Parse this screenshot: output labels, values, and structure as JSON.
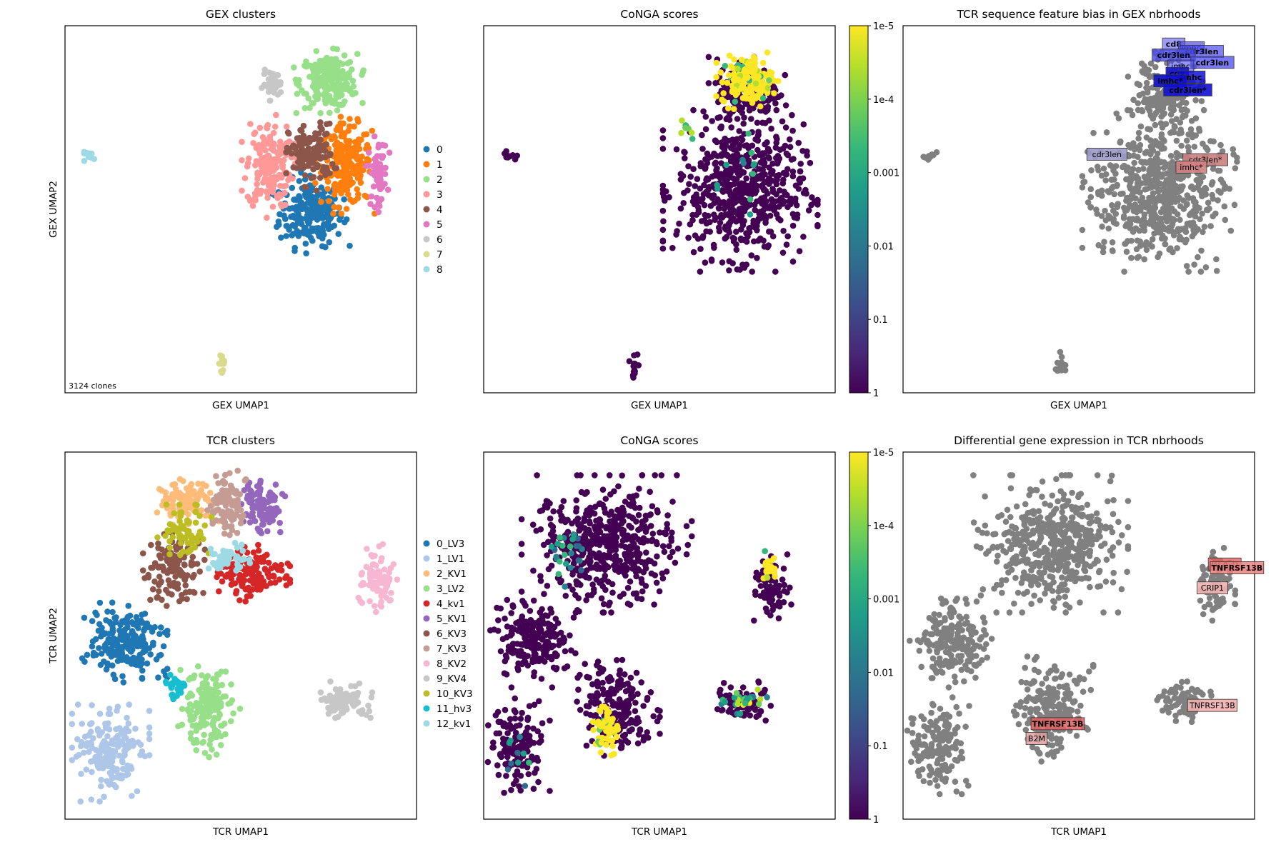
{
  "figure": {
    "background": "#ffffff"
  },
  "chart_data": [
    {
      "id": "gex_clusters",
      "type": "scatter",
      "title": "GEX clusters",
      "xlabel": "GEX UMAP1",
      "ylabel": "GEX UMAP2",
      "xlim": [
        0,
        100
      ],
      "ylim": [
        0,
        100
      ],
      "annotation": "3124 clones",
      "legend": {
        "position": "right",
        "entries": [
          {
            "label": "0",
            "color": "#1f77b4"
          },
          {
            "label": "1",
            "color": "#ff7f0e"
          },
          {
            "label": "2",
            "color": "#98df8a"
          },
          {
            "label": "3",
            "color": "#ff9896"
          },
          {
            "label": "4",
            "color": "#8c564b"
          },
          {
            "label": "5",
            "color": "#e377c2"
          },
          {
            "label": "6",
            "color": "#c7c7c7"
          },
          {
            "label": "7",
            "color": "#dbdb8d"
          },
          {
            "label": "8",
            "color": "#9edae5"
          }
        ]
      },
      "clusters": [
        {
          "label": "0",
          "color": "#1f77b4",
          "cx": 70,
          "cy": 49,
          "rx": 10,
          "ry": 10,
          "n": 220
        },
        {
          "label": "1",
          "color": "#ff7f0e",
          "cx": 80,
          "cy": 62,
          "rx": 8,
          "ry": 12,
          "n": 200
        },
        {
          "label": "2",
          "color": "#98df8a",
          "cx": 75,
          "cy": 85,
          "rx": 9,
          "ry": 8,
          "n": 220
        },
        {
          "label": "3",
          "color": "#ff9896",
          "cx": 58,
          "cy": 62,
          "rx": 7,
          "ry": 13,
          "n": 170
        },
        {
          "label": "4",
          "color": "#8c564b",
          "cx": 70,
          "cy": 65,
          "rx": 7,
          "ry": 9,
          "n": 130
        },
        {
          "label": "5",
          "color": "#e377c2",
          "cx": 89,
          "cy": 60,
          "rx": 3,
          "ry": 10,
          "n": 60
        },
        {
          "label": "6",
          "color": "#c7c7c7",
          "cx": 59,
          "cy": 84,
          "rx": 3,
          "ry": 4,
          "n": 40
        },
        {
          "label": "7",
          "color": "#dbdb8d",
          "cx": 45,
          "cy": 8,
          "rx": 1.5,
          "ry": 3.5,
          "n": 14
        },
        {
          "label": "8",
          "color": "#9edae5",
          "cx": 7,
          "cy": 64.5,
          "rx": 2.5,
          "ry": 1.2,
          "n": 12
        }
      ]
    },
    {
      "id": "conga_gex",
      "type": "scatter",
      "title": "CoNGA scores",
      "xlabel": "GEX UMAP1",
      "ylabel": "",
      "xlim": [
        0,
        100
      ],
      "ylim": [
        0,
        100
      ],
      "colorbar": {
        "ticks": [
          "1e-5",
          "1e-4",
          "0.001",
          "0.01",
          "0.1",
          "1"
        ],
        "tick_log_values": [
          -5,
          -4,
          -3,
          -2,
          -1,
          0
        ],
        "colors": [
          "#fde725",
          "#b5de2b",
          "#6ece58",
          "#35b779",
          "#1f9e89",
          "#26828e",
          "#31688e",
          "#3e4989",
          "#482878",
          "#440154"
        ]
      },
      "base_color": "#440154",
      "clusters": [
        {
          "cx": 73,
          "cy": 55,
          "rx": 20,
          "ry": 20,
          "n": 600
        },
        {
          "cx": 75,
          "cy": 82,
          "rx": 10,
          "ry": 10,
          "n": 200
        },
        {
          "cx": 7,
          "cy": 64.5,
          "rx": 2.5,
          "ry": 1.2,
          "n": 12
        },
        {
          "cx": 43,
          "cy": 8,
          "rx": 1.5,
          "ry": 3.5,
          "n": 14
        }
      ],
      "hot_regions": [
        {
          "cx": 75,
          "cy": 85,
          "rx": 8,
          "ry": 7,
          "n": 170,
          "level": "high"
        },
        {
          "cx": 57,
          "cy": 72,
          "rx": 3,
          "ry": 4,
          "n": 8,
          "level": "mid"
        },
        {
          "cx": 70,
          "cy": 60,
          "rx": 12,
          "ry": 12,
          "n": 12,
          "level": "low"
        }
      ]
    },
    {
      "id": "tcr_bias",
      "type": "scatter",
      "title": "TCR sequence feature bias in GEX nbrhoods",
      "xlabel": "GEX UMAP1",
      "ylabel": "",
      "xlim": [
        0,
        100
      ],
      "ylim": [
        0,
        100
      ],
      "base_color": "#808080",
      "clusters": [
        {
          "cx": 73,
          "cy": 55,
          "rx": 20,
          "ry": 20,
          "n": 600
        },
        {
          "cx": 75,
          "cy": 82,
          "rx": 10,
          "ry": 10,
          "n": 200
        },
        {
          "cx": 7,
          "cy": 64.5,
          "rx": 2.5,
          "ry": 1.2,
          "n": 12
        },
        {
          "cx": 45,
          "cy": 8,
          "rx": 1.5,
          "ry": 3.5,
          "n": 14
        }
      ],
      "labels": [
        {
          "text": "cd8",
          "x": 77,
          "y": 95,
          "color": "#4b4bee",
          "alpha": 0.55,
          "bold": true
        },
        {
          "text": "imhc",
          "x": 82,
          "y": 94,
          "color": "#4b4bee",
          "alpha": 0.7,
          "bold": false
        },
        {
          "text": "cdr3len",
          "x": 85,
          "y": 93,
          "color": "#4b4bee",
          "alpha": 0.7,
          "bold": true
        },
        {
          "text": "cdr3len",
          "x": 77,
          "y": 92,
          "color": "#4b4bee",
          "alpha": 0.8,
          "bold": true
        },
        {
          "text": "cdr3len",
          "x": 88,
          "y": 90,
          "color": "#4b4bee",
          "alpha": 0.75,
          "bold": true
        },
        {
          "text": "imhc",
          "x": 79,
          "y": 89,
          "color": "#4b4bee",
          "alpha": 0.6,
          "bold": false
        },
        {
          "text": "cd8",
          "x": 78,
          "y": 87,
          "color": "#1010d0",
          "alpha": 0.85,
          "bold": true
        },
        {
          "text": "imhc",
          "x": 82,
          "y": 86,
          "color": "#1010d0",
          "alpha": 0.85,
          "bold": true
        },
        {
          "text": "imhc*",
          "x": 76,
          "y": 85,
          "color": "#1010d0",
          "alpha": 0.9,
          "bold": true
        },
        {
          "text": "cdr3len*",
          "x": 81,
          "y": 82.5,
          "color": "#1010d0",
          "alpha": 0.9,
          "bold": true
        },
        {
          "text": "cdr3len",
          "x": 58,
          "y": 65,
          "color": "#9a9ac8",
          "alpha": 0.9,
          "bold": false
        },
        {
          "text": "cdr3len*",
          "x": 86,
          "y": 63.5,
          "color": "#c88080",
          "alpha": 0.9,
          "bold": false
        },
        {
          "text": "imhc*",
          "x": 82,
          "y": 61.5,
          "color": "#d08080",
          "alpha": 0.9,
          "bold": false
        }
      ]
    },
    {
      "id": "tcr_clusters",
      "type": "scatter",
      "title": "TCR clusters",
      "xlabel": "TCR UMAP1",
      "ylabel": "TCR UMAP2",
      "xlim": [
        0,
        100
      ],
      "ylim": [
        0,
        100
      ],
      "legend": {
        "position": "right",
        "entries": [
          {
            "label": "0_LV3",
            "color": "#1f77b4"
          },
          {
            "label": "1_LV1",
            "color": "#aec7e8"
          },
          {
            "label": "2_KV1",
            "color": "#ffbb78"
          },
          {
            "label": "3_LV2",
            "color": "#98df8a"
          },
          {
            "label": "4_kv1",
            "color": "#d62728"
          },
          {
            "label": "5_KV1",
            "color": "#9467bd"
          },
          {
            "label": "6_KV3",
            "color": "#8c564b"
          },
          {
            "label": "7_KV3",
            "color": "#c49c94"
          },
          {
            "label": "8_KV2",
            "color": "#f7b6d2"
          },
          {
            "label": "9_KV4",
            "color": "#c7c7c7"
          },
          {
            "label": "10_KV3",
            "color": "#bcbd22"
          },
          {
            "label": "11_hv3",
            "color": "#17becf"
          },
          {
            "label": "12_kv1",
            "color": "#9edae5"
          }
        ]
      },
      "clusters": [
        {
          "label": "0_LV3",
          "color": "#1f77b4",
          "cx": 17,
          "cy": 48,
          "rx": 11,
          "ry": 10,
          "n": 200
        },
        {
          "label": "1_LV1",
          "color": "#aec7e8",
          "cx": 13,
          "cy": 18,
          "rx": 10,
          "ry": 12,
          "n": 180
        },
        {
          "label": "2_KV1",
          "color": "#ffbb78",
          "cx": 35,
          "cy": 86,
          "rx": 8,
          "ry": 6,
          "n": 110
        },
        {
          "label": "3_LV2",
          "color": "#98df8a",
          "cx": 41,
          "cy": 30,
          "rx": 8,
          "ry": 12,
          "n": 180
        },
        {
          "label": "4_kv1",
          "color": "#d62728",
          "cx": 53,
          "cy": 67,
          "rx": 10,
          "ry": 7,
          "n": 150
        },
        {
          "label": "5_KV1",
          "color": "#9467bd",
          "cx": 56,
          "cy": 85,
          "rx": 6,
          "ry": 8,
          "n": 100
        },
        {
          "label": "6_KV3",
          "color": "#8c564b",
          "cx": 31,
          "cy": 68,
          "rx": 8,
          "ry": 9,
          "n": 130
        },
        {
          "label": "7_KV3",
          "color": "#c49c94",
          "cx": 46,
          "cy": 86,
          "rx": 5,
          "ry": 9,
          "n": 100
        },
        {
          "label": "8_KV2",
          "color": "#f7b6d2",
          "cx": 89,
          "cy": 65,
          "rx": 5,
          "ry": 9,
          "n": 80
        },
        {
          "label": "9_KV4",
          "color": "#c7c7c7",
          "cx": 80,
          "cy": 32,
          "rx": 8,
          "ry": 5,
          "n": 80
        },
        {
          "label": "10_KV3",
          "color": "#bcbd22",
          "cx": 34,
          "cy": 78,
          "rx": 7,
          "ry": 7,
          "n": 70
        },
        {
          "label": "11_hv3",
          "color": "#17becf",
          "cx": 32,
          "cy": 36,
          "rx": 3,
          "ry": 3,
          "n": 35
        },
        {
          "label": "12_kv1",
          "color": "#9edae5",
          "cx": 46,
          "cy": 71,
          "rx": 6,
          "ry": 4,
          "n": 50
        }
      ]
    },
    {
      "id": "conga_tcr",
      "type": "scatter",
      "title": "CoNGA scores",
      "xlabel": "TCR UMAP1",
      "ylabel": "",
      "xlim": [
        0,
        100
      ],
      "ylim": [
        0,
        100
      ],
      "colorbar": {
        "ticks": [
          "1e-5",
          "1e-4",
          "0.001",
          "0.01",
          "0.1",
          "1"
        ],
        "tick_log_values": [
          -5,
          -4,
          -3,
          -2,
          -1,
          0
        ],
        "colors": [
          "#fde725",
          "#b5de2b",
          "#6ece58",
          "#35b779",
          "#1f9e89",
          "#26828e",
          "#31688e",
          "#3e4989",
          "#482878",
          "#440154"
        ]
      },
      "base_color": "#440154",
      "clusters": [
        {
          "cx": 35,
          "cy": 75,
          "rx": 22,
          "ry": 17,
          "n": 500
        },
        {
          "cx": 14,
          "cy": 48,
          "rx": 11,
          "ry": 11,
          "n": 200
        },
        {
          "cx": 10,
          "cy": 20,
          "rx": 8,
          "ry": 12,
          "n": 150
        },
        {
          "cx": 38,
          "cy": 30,
          "rx": 11,
          "ry": 13,
          "n": 200
        },
        {
          "cx": 82,
          "cy": 64,
          "rx": 5,
          "ry": 9,
          "n": 80
        },
        {
          "cx": 74,
          "cy": 32,
          "rx": 7,
          "ry": 5,
          "n": 80
        }
      ],
      "hot_regions": [
        {
          "cx": 35,
          "cy": 24,
          "rx": 4,
          "ry": 6,
          "n": 60,
          "level": "high"
        },
        {
          "cx": 81,
          "cy": 69,
          "rx": 3,
          "ry": 4,
          "n": 25,
          "level": "high"
        },
        {
          "cx": 74,
          "cy": 32,
          "rx": 6,
          "ry": 3,
          "n": 30,
          "level": "mix"
        },
        {
          "cx": 24,
          "cy": 72,
          "rx": 8,
          "ry": 8,
          "n": 25,
          "level": "low"
        },
        {
          "cx": 8,
          "cy": 16,
          "rx": 5,
          "ry": 8,
          "n": 10,
          "level": "low"
        }
      ]
    },
    {
      "id": "dge_tcr",
      "type": "scatter",
      "title": "Differential gene expression in TCR nbrhoods",
      "xlabel": "TCR UMAP1",
      "ylabel": "",
      "xlim": [
        0,
        100
      ],
      "ylim": [
        0,
        100
      ],
      "base_color": "#808080",
      "clusters": [
        {
          "cx": 42,
          "cy": 75,
          "rx": 20,
          "ry": 17,
          "n": 500
        },
        {
          "cx": 14,
          "cy": 48,
          "rx": 11,
          "ry": 11,
          "n": 200
        },
        {
          "cx": 10,
          "cy": 20,
          "rx": 8,
          "ry": 12,
          "n": 150
        },
        {
          "cx": 42,
          "cy": 30,
          "rx": 11,
          "ry": 13,
          "n": 200
        },
        {
          "cx": 89,
          "cy": 64,
          "rx": 5,
          "ry": 9,
          "n": 80
        },
        {
          "cx": 80,
          "cy": 32,
          "rx": 7,
          "ry": 5,
          "n": 80
        }
      ],
      "labels": [
        {
          "text": "HLA-D",
          "x": 91.5,
          "y": 69.5,
          "color": "#e06060",
          "alpha": 0.8,
          "bold": true
        },
        {
          "text": "TNFRSF13B",
          "x": 95,
          "y": 68.5,
          "color": "#f08080",
          "alpha": 0.85,
          "bold": true
        },
        {
          "text": "CRIP1",
          "x": 88,
          "y": 63,
          "color": "#f0b0b0",
          "alpha": 0.9,
          "bold": false
        },
        {
          "text": "TNFRSF13B",
          "x": 88,
          "y": 31,
          "color": "#f0b0b0",
          "alpha": 0.9,
          "bold": false
        },
        {
          "text": "TNFRSF13B",
          "x": 44,
          "y": 26,
          "color": "#e06060",
          "alpha": 0.85,
          "bold": true
        },
        {
          "text": "B2M",
          "x": 38,
          "y": 22,
          "color": "#e0a0a0",
          "alpha": 0.85,
          "bold": false
        }
      ]
    }
  ]
}
